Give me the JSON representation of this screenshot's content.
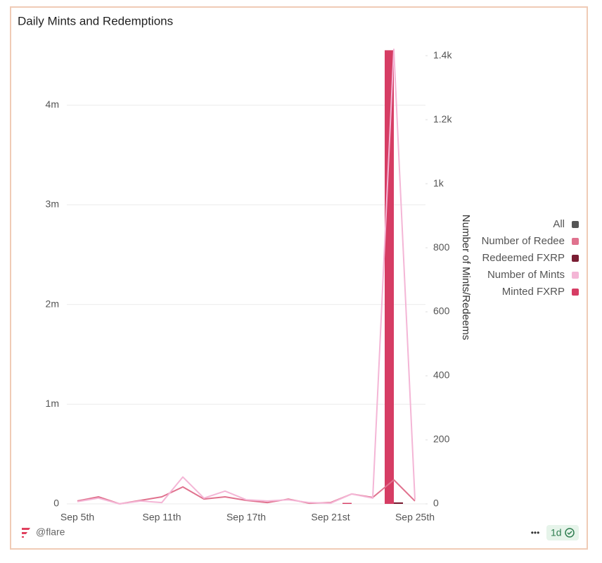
{
  "chart_data": {
    "type": "bar",
    "title": "Daily Mints and Redemptions",
    "categories": [
      "Sep 5th",
      null,
      null,
      null,
      "Sep 11th",
      null,
      null,
      null,
      "Sep 17th",
      null,
      null,
      null,
      "Sep 21st",
      null,
      null,
      null,
      "Sep 25th"
    ],
    "ylim": [
      0,
      4560000
    ],
    "yticks": [
      0,
      {
        "value": 1000000,
        "label": "1m"
      },
      {
        "value": 2000000,
        "label": "2m"
      },
      {
        "value": 3000000,
        "label": "3m"
      },
      {
        "value": 4000000,
        "label": "4m"
      }
    ],
    "y2lim": [
      0,
      1420
    ],
    "y2ticks": [
      0,
      200,
      400,
      600,
      800,
      {
        "value": 1000,
        "label": "1k"
      },
      {
        "value": 1200,
        "label": "1.2k"
      },
      {
        "value": 1400,
        "label": "1.4k"
      }
    ],
    "y2label": "Number of Mints/Redeems",
    "grid": true,
    "legend_position": "right",
    "legend_all": {
      "name": "All",
      "color": "#555555"
    },
    "series": [
      {
        "name": "Number of Redee",
        "type": "line",
        "axis": "y2",
        "color": "#e0728e",
        "values": [
          9,
          22,
          0,
          11,
          22,
          53,
          15,
          22,
          11,
          4,
          15,
          2,
          4,
          31,
          20,
          75,
          9
        ]
      },
      {
        "name": "Redeemed FXRP",
        "type": "bar",
        "color": "#7a1d33",
        "values": [
          0,
          0,
          0,
          0,
          0,
          0,
          0,
          0,
          0,
          0,
          0,
          0,
          0,
          0,
          0,
          15000,
          0
        ]
      },
      {
        "name": "Number of Mints",
        "type": "line",
        "axis": "y2",
        "color": "#f4b6d6",
        "values": [
          7,
          18,
          0,
          9,
          4,
          84,
          18,
          40,
          13,
          9,
          13,
          4,
          2,
          31,
          18,
          1420,
          13
        ]
      },
      {
        "name": "Minted FXRP",
        "type": "bar",
        "color": "#d63d64",
        "values": [
          0,
          0,
          0,
          0,
          0,
          0,
          0,
          0,
          0,
          0,
          0,
          0,
          0,
          10000,
          0,
          4550000,
          0
        ]
      }
    ],
    "footer": {
      "source": "@flare",
      "interval": "1d",
      "menu": "•••"
    }
  }
}
